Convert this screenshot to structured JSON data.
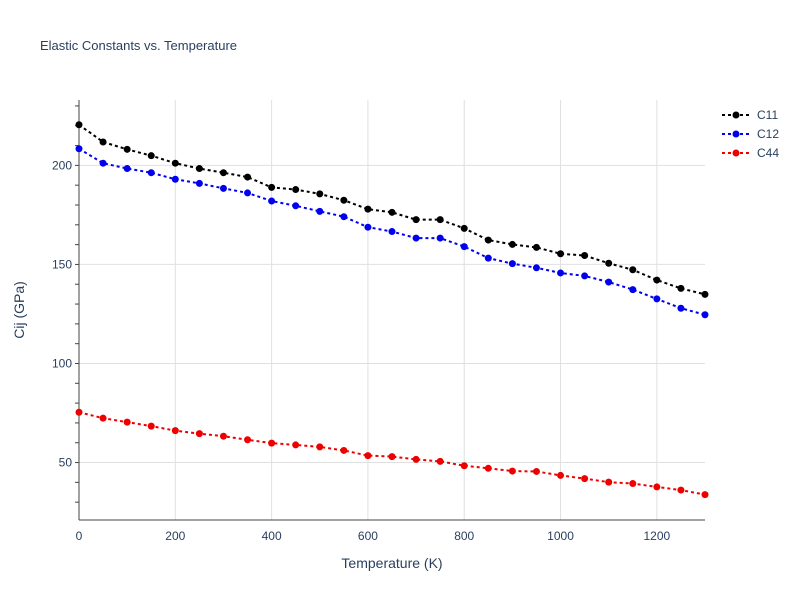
{
  "chart_data": {
    "type": "line",
    "title": "Elastic Constants vs. Temperature",
    "xlabel": "Temperature (K)",
    "ylabel": "Cij (GPa)",
    "xlim": [
      0,
      1300
    ],
    "ylim": [
      21,
      233
    ],
    "xticks": [
      0,
      200,
      400,
      600,
      800,
      1000,
      1200
    ],
    "yticks": [
      50,
      100,
      150,
      200
    ],
    "grid": true,
    "legend_position": "top-right",
    "x": [
      0,
      50,
      100,
      150,
      200,
      250,
      300,
      350,
      400,
      450,
      500,
      550,
      600,
      650,
      700,
      750,
      800,
      850,
      900,
      950,
      1000,
      1050,
      1100,
      1150,
      1200,
      1250,
      1300
    ],
    "series": [
      {
        "name": "C11",
        "color": "#000000",
        "values": [
          220.5,
          211.8,
          208.1,
          204.9,
          201.1,
          198.4,
          196.3,
          194.1,
          188.9,
          187.8,
          185.6,
          182.4,
          177.9,
          176.3,
          172.6,
          172.6,
          168.2,
          162.3,
          160.1,
          158.6,
          155.4,
          154.5,
          150.6,
          147.3,
          142.1,
          137.9,
          134.9
        ]
      },
      {
        "name": "C12",
        "color": "#0000ee",
        "values": [
          208.4,
          201.1,
          198.4,
          196.3,
          193.0,
          190.9,
          188.4,
          186.1,
          182.0,
          179.6,
          176.8,
          174.1,
          168.8,
          166.6,
          163.3,
          163.3,
          159.0,
          153.2,
          150.4,
          148.3,
          145.7,
          144.2,
          141.1,
          137.3,
          132.6,
          127.9,
          124.6
        ]
      },
      {
        "name": "C44",
        "color": "#ee0000",
        "values": [
          75.4,
          72.4,
          70.4,
          68.4,
          66.1,
          64.6,
          63.3,
          61.5,
          59.8,
          58.9,
          57.9,
          56.1,
          53.5,
          53.0,
          51.6,
          50.6,
          48.4,
          47.1,
          45.7,
          45.5,
          43.5,
          41.9,
          40.1,
          39.4,
          37.7,
          36.1,
          33.8
        ]
      }
    ]
  }
}
